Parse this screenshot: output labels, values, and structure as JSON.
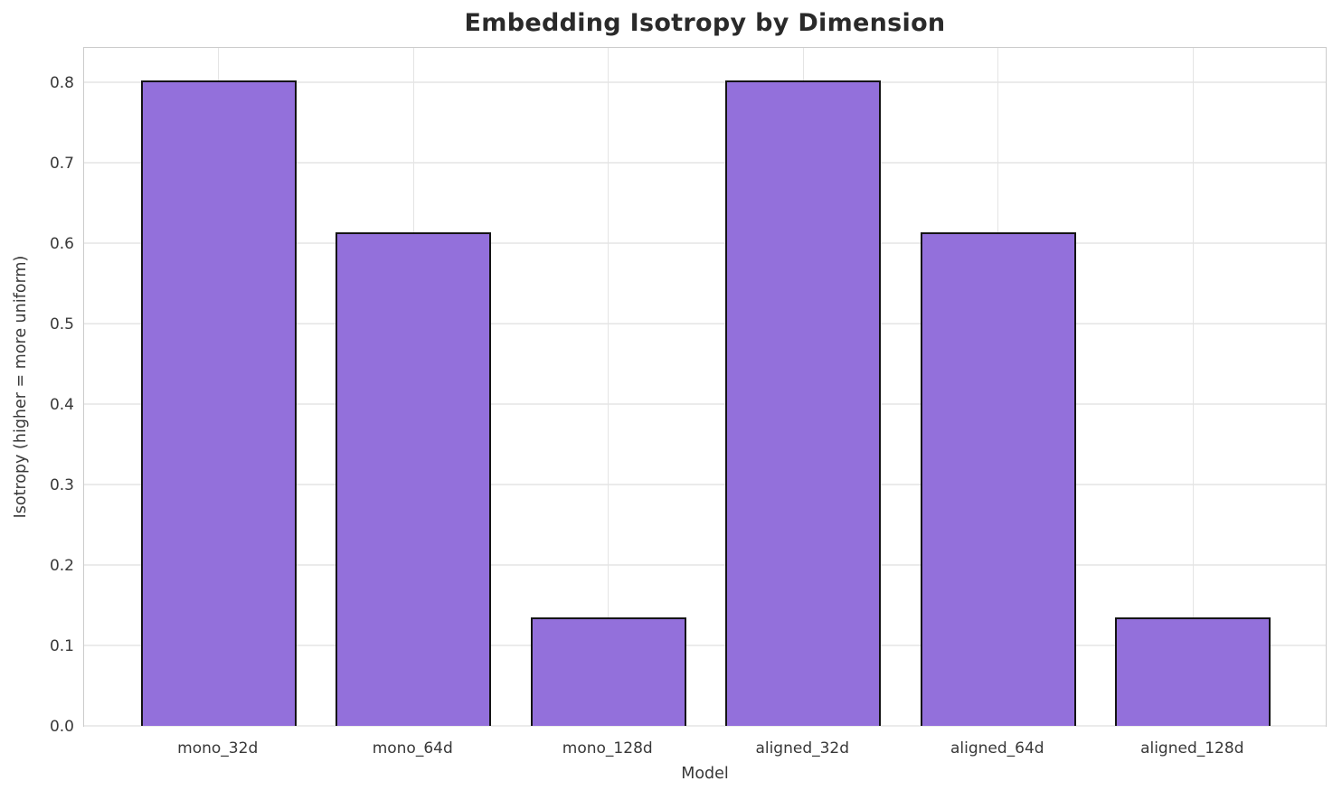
{
  "chart_data": {
    "type": "bar",
    "title": "Embedding Isotropy by Dimension",
    "xlabel": "Model",
    "ylabel": "Isotropy (higher = more uniform)",
    "categories": [
      "mono_32d",
      "mono_64d",
      "mono_128d",
      "aligned_32d",
      "aligned_64d",
      "aligned_128d"
    ],
    "values": [
      0.802,
      0.614,
      0.135,
      0.802,
      0.614,
      0.135
    ],
    "ylim": [
      0.0,
      0.845
    ],
    "xlim": [
      -0.69,
      5.69
    ],
    "bar_width_units": 0.8,
    "yticks": [
      0.0,
      0.1,
      0.2,
      0.3,
      0.4,
      0.5,
      0.6,
      0.7,
      0.8
    ],
    "ytick_labels": [
      "0.0",
      "0.1",
      "0.2",
      "0.3",
      "0.4",
      "0.5",
      "0.6",
      "0.7",
      "0.8"
    ],
    "grid": true,
    "legend": false,
    "bar_color": "#9370DB",
    "bar_edge_color": "#141414",
    "grid_color_h": "#ebebeb",
    "grid_color_v": "#e4e4e4",
    "spine_color": "#cccccc",
    "title_color": "#2a2a2a",
    "tick_color": "#383838"
  }
}
